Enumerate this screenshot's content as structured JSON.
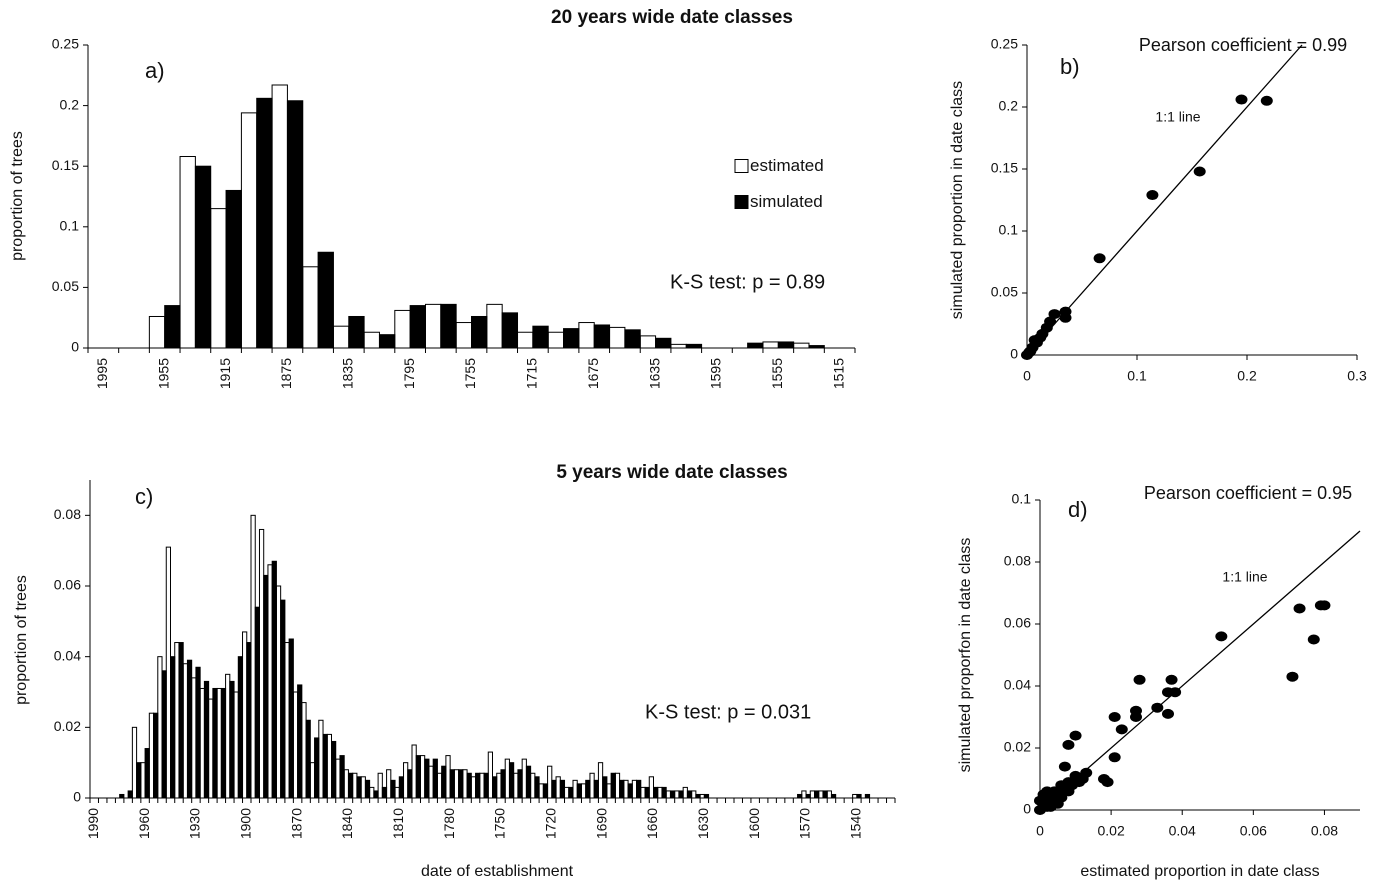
{
  "chart_data": [
    {
      "type": "bar",
      "title": "20 years wide date classes",
      "ylabel": "proportion of trees",
      "annotations": [
        "a)",
        "K-S test: p = 0.89"
      ],
      "categories": [
        "1995",
        null,
        "1955",
        null,
        "1915",
        null,
        "1875",
        null,
        "1835",
        null,
        "1795",
        null,
        "1755",
        null,
        "1715",
        null,
        "1675",
        null,
        "1635",
        null,
        "1595",
        null,
        "1555",
        null,
        "1515"
      ],
      "series": [
        {
          "name": "estimated",
          "color": "#ffffff",
          "values": [
            0,
            0,
            0.026,
            0.158,
            0.115,
            0.194,
            0.217,
            0.067,
            0.018,
            0.013,
            0.031,
            0.036,
            0.021,
            0.036,
            0.013,
            0.013,
            0.021,
            0.017,
            0.01,
            0.003,
            0,
            0,
            0.005,
            0.004,
            0
          ]
        },
        {
          "name": "simulated",
          "color": "#000000",
          "values": [
            0,
            0,
            0.035,
            0.15,
            0.13,
            0.206,
            0.204,
            0.079,
            0.026,
            0.011,
            0.035,
            0.036,
            0.026,
            0.029,
            0.018,
            0.016,
            0.019,
            0.015,
            0.008,
            0.003,
            0,
            0.004,
            0.005,
            0.002,
            0
          ]
        }
      ],
      "edge_color": "#000000",
      "legend": "center right",
      "ylim": [
        0,
        0.25
      ],
      "yticks": [
        0,
        0.05,
        0.1,
        0.15,
        0.2,
        0.25
      ]
    },
    {
      "type": "scatter",
      "xlabel": "",
      "ylabel": "simulated proportion in date class",
      "annotations": [
        "Pearson coefficient = 0.99",
        "b)",
        "1:1 line"
      ],
      "x": [
        0.195,
        0.218,
        0.157,
        0.114,
        0.066,
        0.035,
        0.035,
        0.025,
        0.021,
        0.018,
        0.014,
        0.012,
        0.009,
        0.005,
        0.003,
        0,
        0.002,
        0.007
      ],
      "y": [
        0.206,
        0.205,
        0.148,
        0.129,
        0.078,
        0.03,
        0.035,
        0.033,
        0.027,
        0.022,
        0.017,
        0.014,
        0.01,
        0.006,
        0.003,
        0,
        0.002,
        0.012
      ],
      "color": "#000000",
      "diagonal": true,
      "xlim": [
        0,
        0.3
      ],
      "xticks": [
        0,
        0.1,
        0.2,
        0.3
      ],
      "ylim": [
        0,
        0.25
      ],
      "yticks": [
        0,
        0.05,
        0.1,
        0.15,
        0.2,
        0.25
      ]
    },
    {
      "type": "bar",
      "title": "5 years wide date classes",
      "xlabel": "date of establishment",
      "ylabel": "proportion of trees",
      "annotations": [
        "c)",
        "K-S test: p = 0.031"
      ],
      "categories": [
        "1990",
        null,
        null,
        null,
        null,
        null,
        "1960",
        null,
        null,
        null,
        null,
        null,
        "1930",
        null,
        null,
        null,
        null,
        null,
        "1900",
        null,
        null,
        null,
        null,
        null,
        "1870",
        null,
        null,
        null,
        null,
        null,
        "1840",
        null,
        null,
        null,
        null,
        null,
        "1810",
        null,
        null,
        null,
        null,
        null,
        "1780",
        null,
        null,
        null,
        null,
        null,
        "1750",
        null,
        null,
        null,
        null,
        null,
        "1720",
        null,
        null,
        null,
        null,
        null,
        "1690",
        null,
        null,
        null,
        null,
        null,
        "1660",
        null,
        null,
        null,
        null,
        null,
        "1630",
        null,
        null,
        null,
        null,
        null,
        "1600",
        null,
        null,
        null,
        null,
        null,
        "1570",
        null,
        null,
        null,
        null,
        null,
        "1540",
        null,
        null,
        null,
        null
      ],
      "series": [
        {
          "name": "estimated",
          "color": "#ffffff",
          "values": [
            0,
            0,
            0,
            0,
            0,
            0.02,
            0.01,
            0.024,
            0.04,
            0.071,
            0.044,
            0.038,
            0.034,
            0.031,
            0.028,
            0.031,
            0.035,
            0.03,
            0.047,
            0.08,
            0.076,
            0.066,
            0.06,
            0.044,
            0.03,
            0.027,
            0.01,
            0.022,
            0.018,
            0.011,
            0.008,
            0.007,
            0.006,
            0.003,
            0.007,
            0.008,
            0.003,
            0.01,
            0.015,
            0.012,
            0.009,
            0.007,
            0.012,
            0.008,
            0.008,
            0.006,
            0.007,
            0.013,
            0.007,
            0.011,
            0.007,
            0.011,
            0.007,
            0.004,
            0.009,
            0.006,
            0.003,
            0.005,
            0.004,
            0.007,
            0.01,
            0.004,
            0.007,
            0.005,
            0.005,
            0.003,
            0.006,
            0.003,
            0.002,
            0.002,
            0.003,
            0.002,
            0.001,
            0,
            0,
            0,
            0,
            0,
            0,
            0,
            0,
            0,
            0,
            0,
            0.002,
            0.002,
            0.002,
            0.002,
            0,
            0,
            0.001,
            0,
            0,
            0,
            0
          ]
        },
        {
          "name": "simulated",
          "color": "#000000",
          "values": [
            0,
            0,
            0,
            0.001,
            0.002,
            0.01,
            0.014,
            0.024,
            0.036,
            0.04,
            0.044,
            0.039,
            0.037,
            0.033,
            0.031,
            0.031,
            0.033,
            0.04,
            0.044,
            0.054,
            0.063,
            0.067,
            0.056,
            0.045,
            0.032,
            0.022,
            0.017,
            0.018,
            0.016,
            0.012,
            0.007,
            0.006,
            0.005,
            0.002,
            0.003,
            0.005,
            0.006,
            0.008,
            0.012,
            0.011,
            0.011,
            0.009,
            0.008,
            0.008,
            0.007,
            0.007,
            0.007,
            0.006,
            0.008,
            0.01,
            0.008,
            0.009,
            0.006,
            0.004,
            0.005,
            0.005,
            0.003,
            0.004,
            0.005,
            0.005,
            0.006,
            0.007,
            0.005,
            0.004,
            0.005,
            0.003,
            0.003,
            0.003,
            0.002,
            0.002,
            0.002,
            0.001,
            0.001,
            0,
            0,
            0,
            0,
            0,
            0,
            0,
            0,
            0,
            0,
            0.001,
            0.001,
            0.002,
            0.002,
            0.001,
            0,
            0,
            0.001,
            0.001,
            0,
            0,
            0
          ]
        }
      ],
      "edge_color": "#000000",
      "ylim": [
        0,
        0.09
      ],
      "yticks": [
        0,
        0.02,
        0.04,
        0.06,
        0.08
      ]
    },
    {
      "type": "scatter",
      "xlabel": "estimated proportion in date class",
      "ylabel": "simulated proporfon in date class",
      "annotations": [
        "Pearson coefficient = 0.95",
        "d)",
        "1:1 line"
      ],
      "x": [
        0.08,
        0.079,
        0.073,
        0.077,
        0.071,
        0.051,
        0.037,
        0.036,
        0.038,
        0.033,
        0.036,
        0.028,
        0.027,
        0.027,
        0.023,
        0.021,
        0.021,
        0.019,
        0.018,
        0.01,
        0.008,
        0.007,
        0.013,
        0.01,
        0,
        0.001,
        0.002,
        0.003,
        0.004,
        0.005,
        0.006,
        0.007,
        0.008,
        0.009,
        0.001,
        0.002,
        0.004,
        0.006,
        0.011,
        0.012,
        0.003,
        0,
        0.005,
        0.008
      ],
      "y": [
        0.066,
        0.066,
        0.065,
        0.055,
        0.043,
        0.056,
        0.042,
        0.038,
        0.038,
        0.033,
        0.031,
        0.042,
        0.032,
        0.03,
        0.026,
        0.03,
        0.017,
        0.009,
        0.01,
        0.024,
        0.021,
        0.014,
        0.012,
        0.011,
        0,
        0.002,
        0.001,
        0.004,
        0.003,
        0.005,
        0.004,
        0.007,
        0.006,
        0.008,
        0.005,
        0.006,
        0.006,
        0.008,
        0.009,
        0.01,
        0.001,
        0.003,
        0.002,
        0.009
      ],
      "color": "#000000",
      "diagonal": true,
      "xlim": [
        0,
        0.09
      ],
      "xticks": [
        0,
        0.02,
        0.04,
        0.06,
        0.08
      ],
      "ylim": [
        0,
        0.1
      ],
      "yticks": [
        0,
        0.02,
        0.04,
        0.06,
        0.08,
        0.1
      ]
    }
  ]
}
